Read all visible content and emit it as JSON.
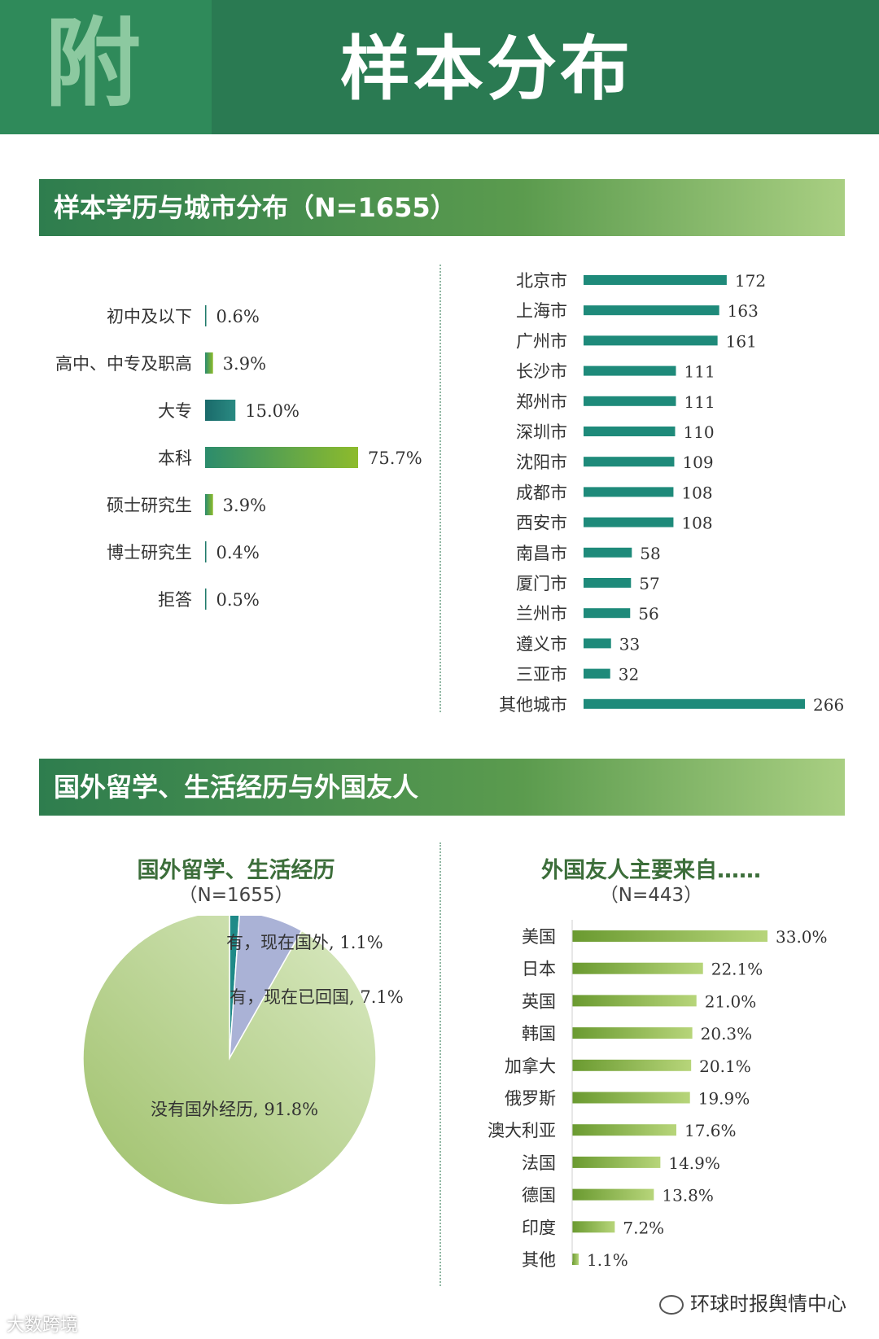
{
  "header": {
    "fu": "附",
    "title": "样本分布"
  },
  "section1": {
    "title": "样本学历与城市分布（N=1655）"
  },
  "section2": {
    "title": "国外留学、生活经历与外国友人"
  },
  "education": {
    "categories": [
      "初中及以下",
      "高中、中专及职高",
      "大专",
      "本科",
      "硕士研究生",
      "博士研究生",
      "拒答"
    ],
    "values": [
      0.6,
      3.9,
      15.0,
      75.7,
      3.9,
      0.4,
      0.5
    ],
    "labels": [
      "0.6%",
      "3.9%",
      "15.0%",
      "75.7%",
      "3.9%",
      "0.4%",
      "0.5%"
    ]
  },
  "cities": {
    "categories": [
      "北京市",
      "上海市",
      "广州市",
      "长沙市",
      "郑州市",
      "深圳市",
      "沈阳市",
      "成都市",
      "西安市",
      "南昌市",
      "厦门市",
      "兰州市",
      "遵义市",
      "三亚市",
      "其他城市"
    ],
    "values": [
      172,
      163,
      161,
      111,
      111,
      110,
      109,
      108,
      108,
      58,
      57,
      56,
      33,
      32,
      266
    ]
  },
  "abroad": {
    "title": "国外留学、生活经历",
    "n": "（N=1655）",
    "labels": [
      "有，现在国外, 1.1%",
      "有，现在已回国, 7.1%",
      "没有国外经历, 91.8%"
    ]
  },
  "friends": {
    "title": "外国友人主要来自……",
    "n": "（N=443）",
    "categories": [
      "美国",
      "日本",
      "英国",
      "韩国",
      "加拿大",
      "俄罗斯",
      "澳大利亚",
      "法国",
      "德国",
      "印度",
      "其他"
    ],
    "values": [
      33.0,
      22.1,
      21.0,
      20.3,
      20.1,
      19.9,
      17.6,
      14.9,
      13.8,
      7.2,
      1.1
    ],
    "labels": [
      "33.0%",
      "22.1%",
      "21.0%",
      "20.3%",
      "20.1%",
      "19.9%",
      "17.6%",
      "14.9%",
      "13.8%",
      "7.2%",
      "1.1%"
    ]
  },
  "footer": {
    "text": "环球时报舆情中心",
    "watermark": "大数跨境"
  },
  "colors": {
    "header_green": "#2a7a52",
    "bar_teal": "#1e8a7a",
    "friend_green": "#7fa83a",
    "pie_green": "#b9d592",
    "pie_lavender": "#aab2d6",
    "pie_teal": "#1f8a88"
  },
  "chart_data": [
    {
      "type": "bar",
      "categories": [
        "初中及以下",
        "高中、中专及职高",
        "大专",
        "本科",
        "硕士研究生",
        "博士研究生",
        "拒答"
      ],
      "values": [
        0.6,
        3.9,
        15.0,
        75.7,
        3.9,
        0.4,
        0.5
      ],
      "title": "样本学历与城市分布（N=1655）"
    },
    {
      "type": "bar",
      "categories": [
        "北京市",
        "上海市",
        "广州市",
        "长沙市",
        "郑州市",
        "深圳市",
        "沈阳市",
        "成都市",
        "西安市",
        "南昌市",
        "厦门市",
        "兰州市",
        "遵义市",
        "三亚市",
        "其他城市"
      ],
      "values": [
        172,
        163,
        161,
        111,
        111,
        110,
        109,
        108,
        108,
        58,
        57,
        56,
        33,
        32,
        266
      ]
    },
    {
      "type": "pie",
      "categories": [
        "有，现在国外",
        "有，现在已回国",
        "没有国外经历"
      ],
      "values": [
        1.1,
        7.1,
        91.8
      ],
      "title": "国外留学、生活经历（N=1655）"
    },
    {
      "type": "bar",
      "categories": [
        "美国",
        "日本",
        "英国",
        "韩国",
        "加拿大",
        "俄罗斯",
        "澳大利亚",
        "法国",
        "德国",
        "印度",
        "其他"
      ],
      "values": [
        33.0,
        22.1,
        21.0,
        20.3,
        20.1,
        19.9,
        17.6,
        14.9,
        13.8,
        7.2,
        1.1
      ],
      "title": "外国友人主要来自……（N=443）"
    }
  ]
}
